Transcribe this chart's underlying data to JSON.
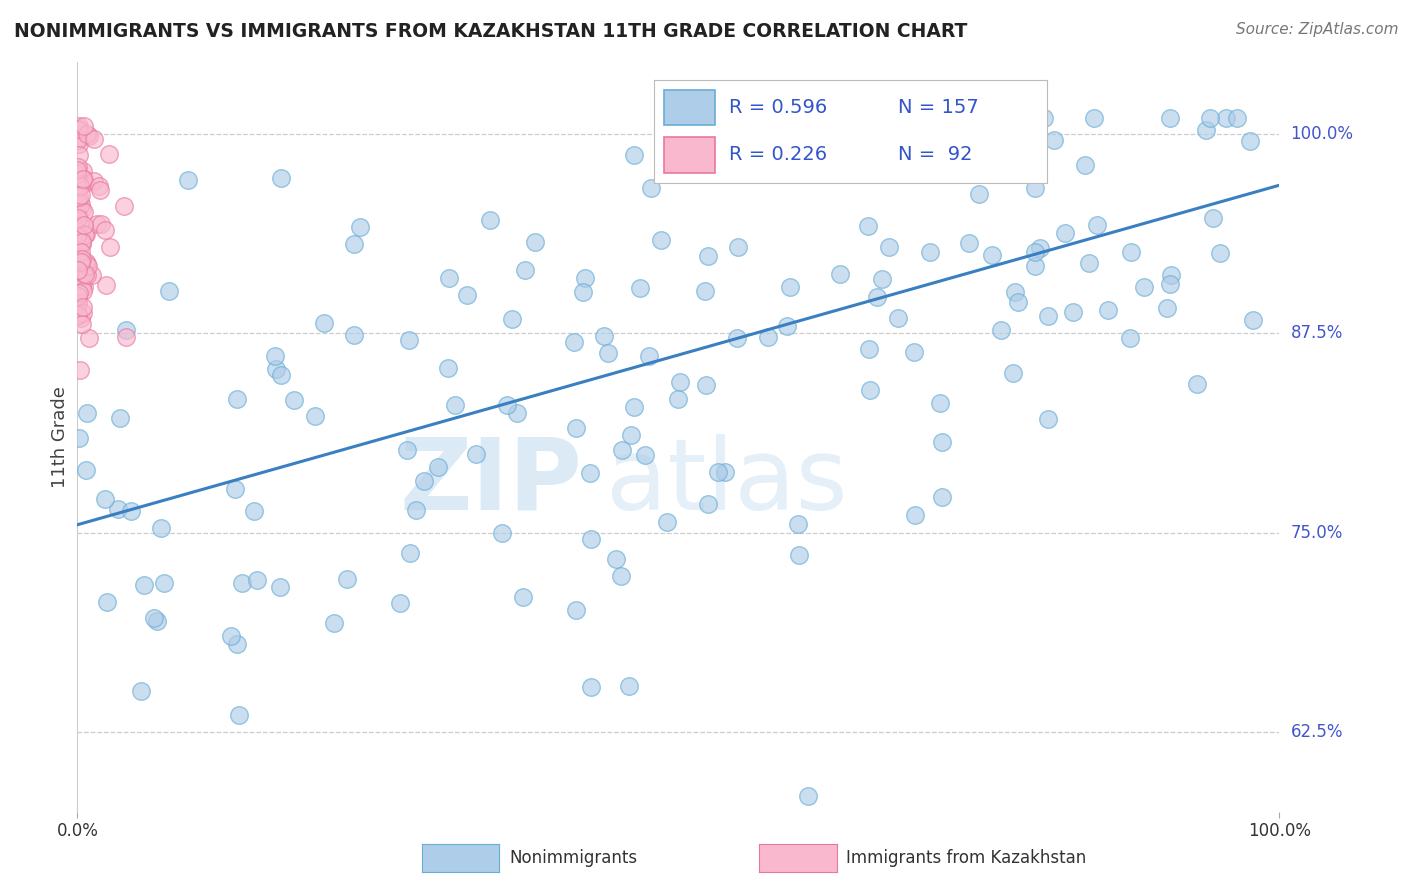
{
  "title": "NONIMMIGRANTS VS IMMIGRANTS FROM KAZAKHSTAN 11TH GRADE CORRELATION CHART",
  "source": "Source: ZipAtlas.com",
  "ylabel_label": "11th Grade",
  "ylabel_ticks": [
    0.625,
    0.75,
    0.875,
    1.0
  ],
  "ylabel_tick_labels": [
    "62.5%",
    "75.0%",
    "87.5%",
    "100.0%"
  ],
  "xmin": 0.0,
  "xmax": 1.0,
  "ymin": 0.575,
  "ymax": 1.045,
  "blue_R": 0.596,
  "blue_N": 157,
  "pink_R": 0.226,
  "pink_N": 92,
  "blue_color": "#aecde8",
  "blue_edge": "#6aadd5",
  "pink_color": "#f9b8ce",
  "pink_edge": "#e8789f",
  "trendline_color": "#3a7fc1",
  "watermark_zip": "ZIP",
  "watermark_atlas": "atlas",
  "title_color": "#222222",
  "right_tick_color": "#4455cc",
  "legend_text_color": "#3355cc",
  "bottom_legend_blue": "Nonimmigrants",
  "bottom_legend_pink": "Immigrants from Kazakhstan",
  "trend_start_y": 0.755,
  "trend_end_y": 0.968
}
